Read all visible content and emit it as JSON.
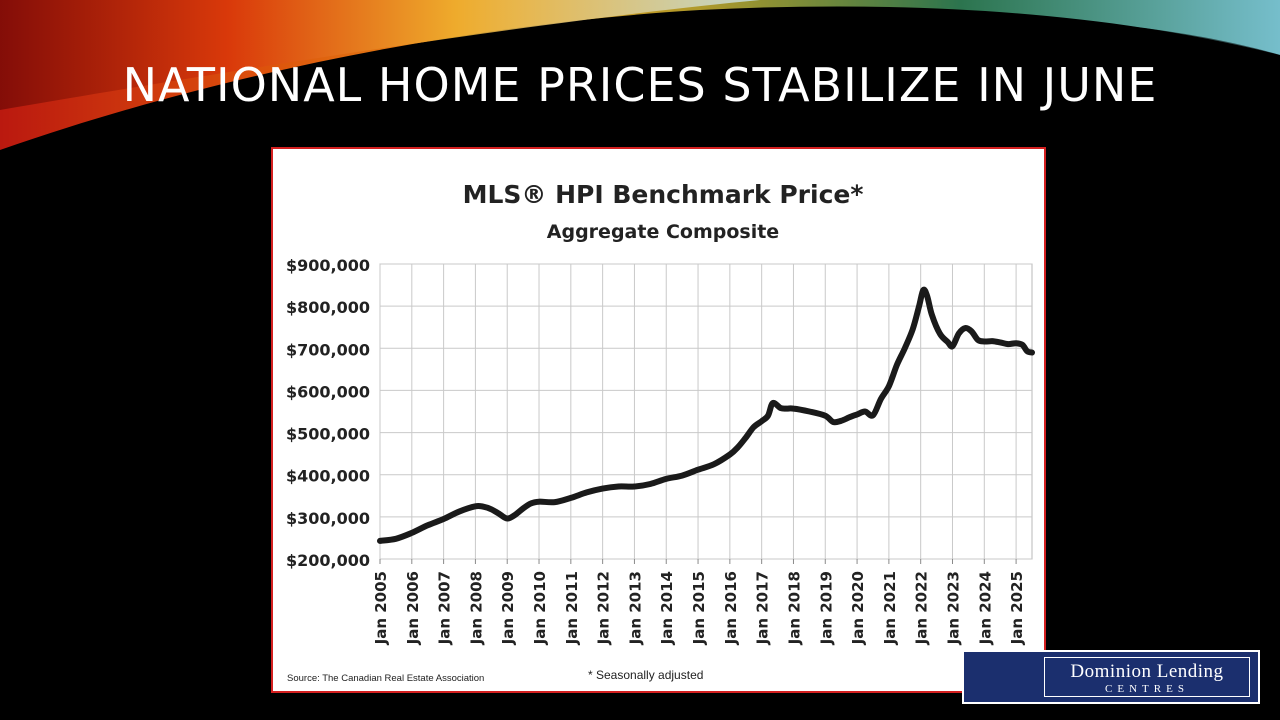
{
  "slide": {
    "title": "NATIONAL HOME PRICES STABILIZE IN JUNE"
  },
  "logo": {
    "line1": "Dominion Lending",
    "line2": "CENTRES"
  },
  "chart_data": {
    "type": "line",
    "title": "MLS® HPI Benchmark Price*",
    "subtitle": "Aggregate Composite",
    "source": "Source: The Canadian Real Estate Association",
    "footnote": "* Seasonally adjusted",
    "xlabel": "",
    "ylabel": "",
    "ylim": [
      200000,
      900000
    ],
    "ytick_values": [
      200000,
      300000,
      400000,
      500000,
      600000,
      700000,
      800000,
      900000
    ],
    "ytick_labels": [
      "$200,000",
      "$300,000",
      "$400,000",
      "$500,000",
      "$600,000",
      "$700,000",
      "$800,000",
      "$900,000"
    ],
    "xlim": [
      2005.0,
      2025.5
    ],
    "xtick_values": [
      2005,
      2006,
      2007,
      2008,
      2009,
      2010,
      2011,
      2012,
      2013,
      2014,
      2015,
      2016,
      2017,
      2018,
      2019,
      2020,
      2021,
      2022,
      2023,
      2024,
      2025
    ],
    "xtick_labels": [
      "Jan 2005",
      "Jan 2006",
      "Jan 2007",
      "Jan 2008",
      "Jan 2009",
      "Jan 2010",
      "Jan 2011",
      "Jan 2012",
      "Jan 2013",
      "Jan 2014",
      "Jan 2015",
      "Jan 2016",
      "Jan 2017",
      "Jan 2018",
      "Jan 2019",
      "Jan 2020",
      "Jan 2021",
      "Jan 2022",
      "Jan 2023",
      "Jan 2024",
      "Jan 2025"
    ],
    "grid": true,
    "legend": "none",
    "line_color": "#1a1a1a",
    "series": [
      {
        "x": [
          2005.0,
          2005.5,
          2006.0,
          2006.5,
          2007.0,
          2007.5,
          2008.0,
          2008.25,
          2008.5,
          2008.75,
          2009.0,
          2009.25,
          2009.5,
          2009.75,
          2010.0,
          2010.5,
          2011.0,
          2011.5,
          2012.0,
          2012.5,
          2013.0,
          2013.5,
          2014.0,
          2014.5,
          2015.0,
          2015.5,
          2016.0,
          2016.25,
          2016.5,
          2016.75,
          2017.0,
          2017.2,
          2017.35,
          2017.6,
          2017.8,
          2018.0,
          2018.5,
          2019.0,
          2019.25,
          2019.5,
          2019.75,
          2020.0,
          2020.25,
          2020.5,
          2020.75,
          2021.0,
          2021.25,
          2021.5,
          2021.75,
          2021.95,
          2022.08,
          2022.2,
          2022.35,
          2022.6,
          2022.85,
          2023.0,
          2023.2,
          2023.4,
          2023.6,
          2023.8,
          2024.0,
          2024.25,
          2024.5,
          2024.75,
          2025.0,
          2025.2,
          2025.35,
          2025.5
        ],
        "y": [
          243000,
          248000,
          262000,
          280000,
          295000,
          313000,
          325000,
          324000,
          318000,
          307000,
          296000,
          305000,
          320000,
          332000,
          336000,
          335000,
          345000,
          358000,
          367000,
          372000,
          372000,
          378000,
          390000,
          398000,
          412000,
          425000,
          448000,
          465000,
          488000,
          513000,
          527000,
          540000,
          570000,
          558000,
          557000,
          557000,
          550000,
          540000,
          525000,
          528000,
          536000,
          543000,
          550000,
          541000,
          580000,
          610000,
          660000,
          700000,
          745000,
          800000,
          838000,
          825000,
          780000,
          735000,
          715000,
          705000,
          735000,
          748000,
          740000,
          720000,
          716000,
          717000,
          714000,
          710000,
          712000,
          708000,
          693000,
          690000
        ]
      }
    ]
  }
}
